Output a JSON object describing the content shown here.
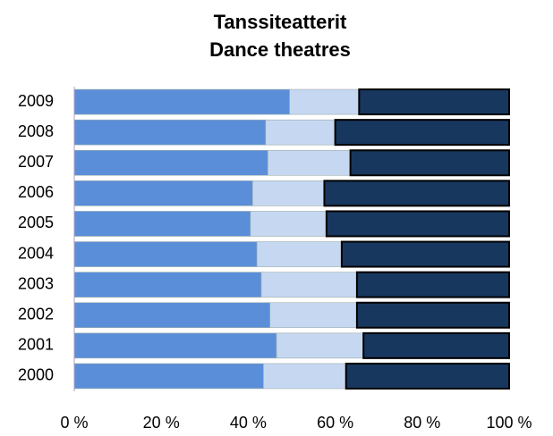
{
  "chart_data": {
    "type": "stacked_barh",
    "title": "Tanssiteatterit",
    "subtitle": "Dance theatres",
    "categories": [
      "2000",
      "2001",
      "2002",
      "2003",
      "2004",
      "2005",
      "2006",
      "2007",
      "2008",
      "2009"
    ],
    "series": [
      {
        "color": "#5b8ed8",
        "values": [
          43.5,
          46.5,
          45,
          43,
          42,
          40.5,
          41,
          44.5,
          44,
          49.5
        ]
      },
      {
        "color": "#c6d8f1",
        "values": [
          19,
          20,
          20,
          22,
          19.5,
          17.5,
          16.5,
          19,
          16,
          16
        ]
      },
      {
        "color": "#17375e",
        "values": [
          37.5,
          33.5,
          35,
          35,
          38.5,
          42,
          42.5,
          36.5,
          40,
          34.5
        ]
      }
    ],
    "xlim": [
      0,
      100
    ],
    "xticks": [
      {
        "value": 0,
        "label": "0 %"
      },
      {
        "value": 20,
        "label": "20 %"
      },
      {
        "value": 40,
        "label": "40 %"
      },
      {
        "value": 60,
        "label": "60 %"
      },
      {
        "value": 80,
        "label": "80 %"
      },
      {
        "value": 100,
        "label": "100 %"
      }
    ]
  }
}
